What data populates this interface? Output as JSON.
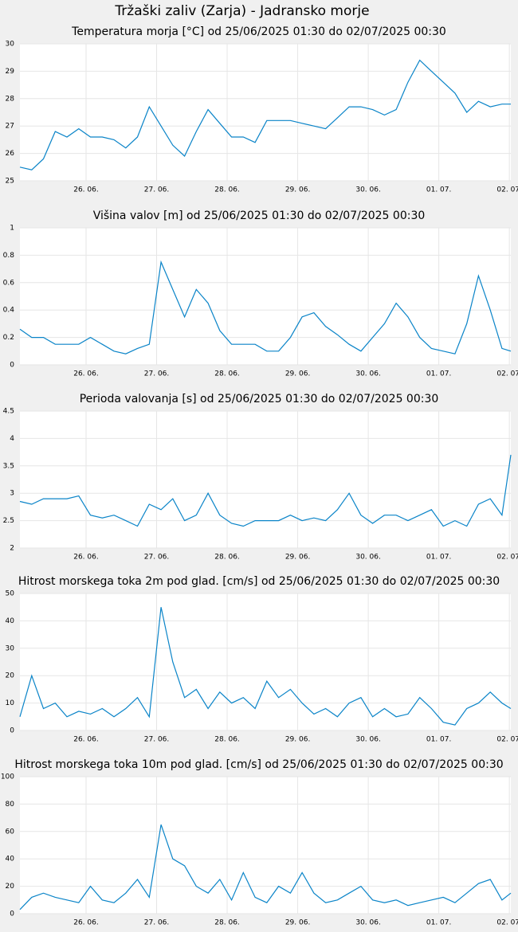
{
  "title": "Tržaški zaliv (Zarja) - Jadransko morje",
  "chart_data": [
    {
      "type": "line",
      "title": "Temperatura morja [°C] od 25/06/2025 01:30 do 02/07/2025 00:30",
      "color": "#0a84c8",
      "grid": true,
      "xlim": [
        "25/06/2025 01:30",
        "02/07/2025 00:30"
      ],
      "xticks": [
        {
          "value": "26/06/2025 00:00",
          "label": "26. 06."
        },
        {
          "value": "27/06/2025 00:00",
          "label": "27. 06."
        },
        {
          "value": "28/06/2025 00:00",
          "label": "28. 06."
        },
        {
          "value": "29/06/2025 00:00",
          "label": "29. 06."
        },
        {
          "value": "30/06/2025 00:00",
          "label": "30. 06."
        },
        {
          "value": "01/07/2025 00:00",
          "label": "01. 07."
        },
        {
          "value": "02/07/2025 00:00",
          "label": "02. 07."
        }
      ],
      "ylim": [
        25,
        30
      ],
      "yticks": [
        25,
        26,
        27,
        28,
        29,
        30
      ],
      "x": [
        "25/06/2025 01:30",
        "25/06/2025 05:30",
        "25/06/2025 09:30",
        "25/06/2025 13:30",
        "25/06/2025 17:30",
        "25/06/2025 21:30",
        "26/06/2025 01:30",
        "26/06/2025 05:30",
        "26/06/2025 09:30",
        "26/06/2025 13:30",
        "26/06/2025 17:30",
        "26/06/2025 21:30",
        "27/06/2025 01:30",
        "27/06/2025 05:30",
        "27/06/2025 09:30",
        "27/06/2025 13:30",
        "27/06/2025 17:30",
        "27/06/2025 21:30",
        "28/06/2025 01:30",
        "28/06/2025 05:30",
        "28/06/2025 09:30",
        "28/06/2025 13:30",
        "28/06/2025 17:30",
        "28/06/2025 21:30",
        "29/06/2025 01:30",
        "29/06/2025 05:30",
        "29/06/2025 09:30",
        "29/06/2025 13:30",
        "29/06/2025 17:30",
        "29/06/2025 21:30",
        "30/06/2025 01:30",
        "30/06/2025 05:30",
        "30/06/2025 09:30",
        "30/06/2025 13:30",
        "30/06/2025 17:30",
        "30/06/2025 21:30",
        "01/07/2025 01:30",
        "01/07/2025 05:30",
        "01/07/2025 09:30",
        "01/07/2025 13:30",
        "01/07/2025 17:30",
        "01/07/2025 21:30",
        "02/07/2025 00:30"
      ],
      "values": [
        25.5,
        25.4,
        25.8,
        26.8,
        26.6,
        26.9,
        26.6,
        26.6,
        26.5,
        26.2,
        26.6,
        27.7,
        27.0,
        26.3,
        25.9,
        26.8,
        27.6,
        27.1,
        26.6,
        26.6,
        26.4,
        27.2,
        27.2,
        27.2,
        27.1,
        27.0,
        26.9,
        27.3,
        27.7,
        27.7,
        27.6,
        27.4,
        27.6,
        28.6,
        29.4,
        29.0,
        28.6,
        28.2,
        27.5,
        27.9,
        27.7,
        27.8,
        27.8
      ]
    },
    {
      "type": "line",
      "title": "Višina valov [m] od 25/06/2025 01:30 do 02/07/2025 00:30",
      "color": "#0a84c8",
      "grid": true,
      "xlim": [
        "25/06/2025 01:30",
        "02/07/2025 00:30"
      ],
      "xticks": [
        {
          "value": "26/06/2025 00:00",
          "label": "26. 06."
        },
        {
          "value": "27/06/2025 00:00",
          "label": "27. 06."
        },
        {
          "value": "28/06/2025 00:00",
          "label": "28. 06."
        },
        {
          "value": "29/06/2025 00:00",
          "label": "29. 06."
        },
        {
          "value": "30/06/2025 00:00",
          "label": "30. 06."
        },
        {
          "value": "01/07/2025 00:00",
          "label": "01. 07."
        },
        {
          "value": "02/07/2025 00:00",
          "label": "02. 07."
        }
      ],
      "ylim": [
        0,
        1
      ],
      "yticks": [
        0,
        0.2,
        0.4,
        0.6,
        0.8,
        1
      ],
      "x": [
        "25/06/2025 01:30",
        "25/06/2025 05:30",
        "25/06/2025 09:30",
        "25/06/2025 13:30",
        "25/06/2025 17:30",
        "25/06/2025 21:30",
        "26/06/2025 01:30",
        "26/06/2025 05:30",
        "26/06/2025 09:30",
        "26/06/2025 13:30",
        "26/06/2025 17:30",
        "26/06/2025 21:30",
        "27/06/2025 01:30",
        "27/06/2025 05:30",
        "27/06/2025 09:30",
        "27/06/2025 13:30",
        "27/06/2025 17:30",
        "27/06/2025 21:30",
        "28/06/2025 01:30",
        "28/06/2025 05:30",
        "28/06/2025 09:30",
        "28/06/2025 13:30",
        "28/06/2025 17:30",
        "28/06/2025 21:30",
        "29/06/2025 01:30",
        "29/06/2025 05:30",
        "29/06/2025 09:30",
        "29/06/2025 13:30",
        "29/06/2025 17:30",
        "29/06/2025 21:30",
        "30/06/2025 01:30",
        "30/06/2025 05:30",
        "30/06/2025 09:30",
        "30/06/2025 13:30",
        "30/06/2025 17:30",
        "30/06/2025 21:30",
        "01/07/2025 01:30",
        "01/07/2025 05:30",
        "01/07/2025 09:30",
        "01/07/2025 13:30",
        "01/07/2025 17:30",
        "01/07/2025 21:30",
        "02/07/2025 00:30"
      ],
      "values": [
        0.26,
        0.2,
        0.2,
        0.15,
        0.15,
        0.15,
        0.2,
        0.15,
        0.1,
        0.08,
        0.12,
        0.15,
        0.75,
        0.55,
        0.35,
        0.55,
        0.45,
        0.25,
        0.15,
        0.15,
        0.15,
        0.1,
        0.1,
        0.2,
        0.35,
        0.38,
        0.28,
        0.22,
        0.15,
        0.1,
        0.2,
        0.3,
        0.45,
        0.35,
        0.2,
        0.12,
        0.1,
        0.08,
        0.3,
        0.65,
        0.4,
        0.12,
        0.1
      ]
    },
    {
      "type": "line",
      "title": "Perioda valovanja [s] od 25/06/2025 01:30 do 02/07/2025 00:30",
      "color": "#0a84c8",
      "grid": true,
      "xlim": [
        "25/06/2025 01:30",
        "02/07/2025 00:30"
      ],
      "xticks": [
        {
          "value": "26/06/2025 00:00",
          "label": "26. 06."
        },
        {
          "value": "27/06/2025 00:00",
          "label": "27. 06."
        },
        {
          "value": "28/06/2025 00:00",
          "label": "28. 06."
        },
        {
          "value": "29/06/2025 00:00",
          "label": "29. 06."
        },
        {
          "value": "30/06/2025 00:00",
          "label": "30. 06."
        },
        {
          "value": "01/07/2025 00:00",
          "label": "01. 07."
        },
        {
          "value": "02/07/2025 00:00",
          "label": "02. 07."
        }
      ],
      "ylim": [
        2,
        4.5
      ],
      "yticks": [
        2,
        2.5,
        3,
        3.5,
        4,
        4.5
      ],
      "x": [
        "25/06/2025 01:30",
        "25/06/2025 05:30",
        "25/06/2025 09:30",
        "25/06/2025 13:30",
        "25/06/2025 17:30",
        "25/06/2025 21:30",
        "26/06/2025 01:30",
        "26/06/2025 05:30",
        "26/06/2025 09:30",
        "26/06/2025 13:30",
        "26/06/2025 17:30",
        "26/06/2025 21:30",
        "27/06/2025 01:30",
        "27/06/2025 05:30",
        "27/06/2025 09:30",
        "27/06/2025 13:30",
        "27/06/2025 17:30",
        "27/06/2025 21:30",
        "28/06/2025 01:30",
        "28/06/2025 05:30",
        "28/06/2025 09:30",
        "28/06/2025 13:30",
        "28/06/2025 17:30",
        "28/06/2025 21:30",
        "29/06/2025 01:30",
        "29/06/2025 05:30",
        "29/06/2025 09:30",
        "29/06/2025 13:30",
        "29/06/2025 17:30",
        "29/06/2025 21:30",
        "30/06/2025 01:30",
        "30/06/2025 05:30",
        "30/06/2025 09:30",
        "30/06/2025 13:30",
        "30/06/2025 17:30",
        "30/06/2025 21:30",
        "01/07/2025 01:30",
        "01/07/2025 05:30",
        "01/07/2025 09:30",
        "01/07/2025 13:30",
        "01/07/2025 17:30",
        "01/07/2025 21:30",
        "02/07/2025 00:30"
      ],
      "values": [
        2.85,
        2.8,
        2.9,
        2.9,
        2.9,
        2.95,
        2.6,
        2.55,
        2.6,
        2.5,
        2.4,
        2.8,
        2.7,
        2.9,
        2.5,
        2.6,
        3.0,
        2.6,
        2.45,
        2.4,
        2.5,
        2.5,
        2.5,
        2.6,
        2.5,
        2.55,
        2.5,
        2.7,
        3.0,
        2.6,
        2.45,
        2.6,
        2.6,
        2.5,
        2.6,
        2.7,
        2.4,
        2.5,
        2.4,
        2.8,
        2.9,
        2.6,
        3.7
      ]
    },
    {
      "type": "line",
      "title": "Hitrost morskega toka 2m pod glad. [cm/s] od 25/06/2025 01:30 do 02/07/2025 00:30",
      "color": "#0a84c8",
      "grid": true,
      "xlim": [
        "25/06/2025 01:30",
        "02/07/2025 00:30"
      ],
      "xticks": [
        {
          "value": "26/06/2025 00:00",
          "label": "26. 06."
        },
        {
          "value": "27/06/2025 00:00",
          "label": "27. 06."
        },
        {
          "value": "28/06/2025 00:00",
          "label": "28. 06."
        },
        {
          "value": "29/06/2025 00:00",
          "label": "29. 06."
        },
        {
          "value": "30/06/2025 00:00",
          "label": "30. 06."
        },
        {
          "value": "01/07/2025 00:00",
          "label": "01. 07."
        },
        {
          "value": "02/07/2025 00:00",
          "label": "02. 07."
        }
      ],
      "ylim": [
        0,
        50
      ],
      "yticks": [
        0,
        10,
        20,
        30,
        40,
        50
      ],
      "x": [
        "25/06/2025 01:30",
        "25/06/2025 05:30",
        "25/06/2025 09:30",
        "25/06/2025 13:30",
        "25/06/2025 17:30",
        "25/06/2025 21:30",
        "26/06/2025 01:30",
        "26/06/2025 05:30",
        "26/06/2025 09:30",
        "26/06/2025 13:30",
        "26/06/2025 17:30",
        "26/06/2025 21:30",
        "27/06/2025 01:30",
        "27/06/2025 05:30",
        "27/06/2025 09:30",
        "27/06/2025 13:30",
        "27/06/2025 17:30",
        "27/06/2025 21:30",
        "28/06/2025 01:30",
        "28/06/2025 05:30",
        "28/06/2025 09:30",
        "28/06/2025 13:30",
        "28/06/2025 17:30",
        "28/06/2025 21:30",
        "29/06/2025 01:30",
        "29/06/2025 05:30",
        "29/06/2025 09:30",
        "29/06/2025 13:30",
        "29/06/2025 17:30",
        "29/06/2025 21:30",
        "30/06/2025 01:30",
        "30/06/2025 05:30",
        "30/06/2025 09:30",
        "30/06/2025 13:30",
        "30/06/2025 17:30",
        "30/06/2025 21:30",
        "01/07/2025 01:30",
        "01/07/2025 05:30",
        "01/07/2025 09:30",
        "01/07/2025 13:30",
        "01/07/2025 17:30",
        "01/07/2025 21:30",
        "02/07/2025 00:30"
      ],
      "values": [
        5,
        20,
        8,
        10,
        5,
        7,
        6,
        8,
        5,
        8,
        12,
        5,
        45,
        25,
        12,
        15,
        8,
        14,
        10,
        12,
        8,
        18,
        12,
        15,
        10,
        6,
        8,
        5,
        10,
        12,
        5,
        8,
        5,
        6,
        12,
        8,
        3,
        2,
        8,
        10,
        14,
        10,
        8
      ]
    },
    {
      "type": "line",
      "title": "Hitrost morskega toka 10m pod glad. [cm/s] od 25/06/2025 01:30 do 02/07/2025 00:30",
      "color": "#0a84c8",
      "grid": true,
      "xlim": [
        "25/06/2025 01:30",
        "02/07/2025 00:30"
      ],
      "xticks": [
        {
          "value": "26/06/2025 00:00",
          "label": "26. 06."
        },
        {
          "value": "27/06/2025 00:00",
          "label": "27. 06."
        },
        {
          "value": "28/06/2025 00:00",
          "label": "28. 06."
        },
        {
          "value": "29/06/2025 00:00",
          "label": "29. 06."
        },
        {
          "value": "30/06/2025 00:00",
          "label": "30. 06."
        },
        {
          "value": "01/07/2025 00:00",
          "label": "01. 07."
        },
        {
          "value": "02/07/2025 00:00",
          "label": "02. 07."
        }
      ],
      "ylim": [
        0,
        100
      ],
      "yticks": [
        0,
        20,
        40,
        60,
        80,
        100
      ],
      "x": [
        "25/06/2025 01:30",
        "25/06/2025 05:30",
        "25/06/2025 09:30",
        "25/06/2025 13:30",
        "25/06/2025 17:30",
        "25/06/2025 21:30",
        "26/06/2025 01:30",
        "26/06/2025 05:30",
        "26/06/2025 09:30",
        "26/06/2025 13:30",
        "26/06/2025 17:30",
        "26/06/2025 21:30",
        "27/06/2025 01:30",
        "27/06/2025 05:30",
        "27/06/2025 09:30",
        "27/06/2025 13:30",
        "27/06/2025 17:30",
        "27/06/2025 21:30",
        "28/06/2025 01:30",
        "28/06/2025 05:30",
        "28/06/2025 09:30",
        "28/06/2025 13:30",
        "28/06/2025 17:30",
        "28/06/2025 21:30",
        "29/06/2025 01:30",
        "29/06/2025 05:30",
        "29/06/2025 09:30",
        "29/06/2025 13:30",
        "29/06/2025 17:30",
        "29/06/2025 21:30",
        "30/06/2025 01:30",
        "30/06/2025 05:30",
        "30/06/2025 09:30",
        "30/06/2025 13:30",
        "30/06/2025 17:30",
        "30/06/2025 21:30",
        "01/07/2025 01:30",
        "01/07/2025 05:30",
        "01/07/2025 09:30",
        "01/07/2025 13:30",
        "01/07/2025 17:30",
        "01/07/2025 21:30",
        "02/07/2025 00:30"
      ],
      "values": [
        3,
        12,
        15,
        12,
        10,
        8,
        20,
        10,
        8,
        15,
        25,
        12,
        65,
        40,
        35,
        20,
        15,
        25,
        10,
        30,
        12,
        8,
        20,
        15,
        30,
        15,
        8,
        10,
        15,
        20,
        10,
        8,
        10,
        6,
        8,
        10,
        12,
        8,
        15,
        22,
        25,
        10,
        15
      ]
    }
  ]
}
